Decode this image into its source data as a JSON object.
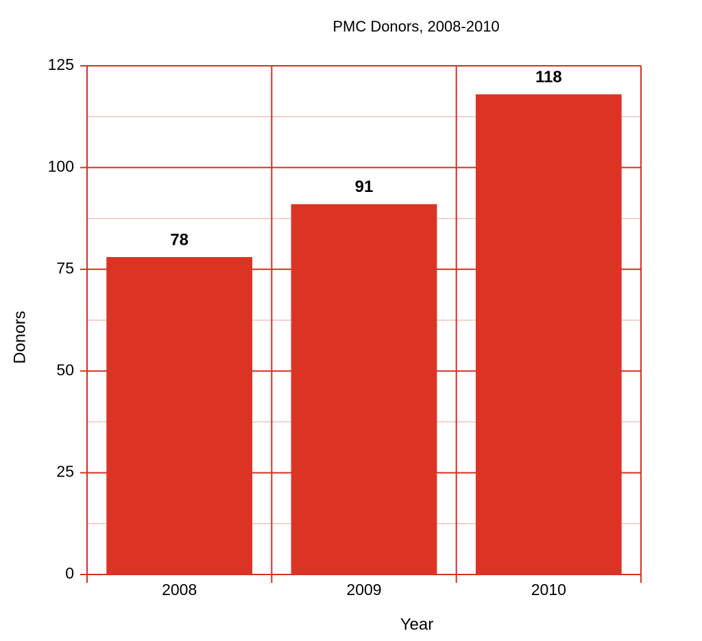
{
  "chart_data": {
    "type": "bar",
    "title": "PMC Donors, 2008-2010",
    "x_label": "Year",
    "y_label": "Donors",
    "categories": [
      "2008",
      "2009",
      "2010"
    ],
    "values": [
      78,
      91,
      118
    ],
    "color": "#dc3424",
    "ylim": [
      0,
      125
    ],
    "yticks": [
      0,
      25,
      50,
      75,
      100,
      125
    ],
    "grid": true,
    "minor_grid": true,
    "data_labels": true
  }
}
